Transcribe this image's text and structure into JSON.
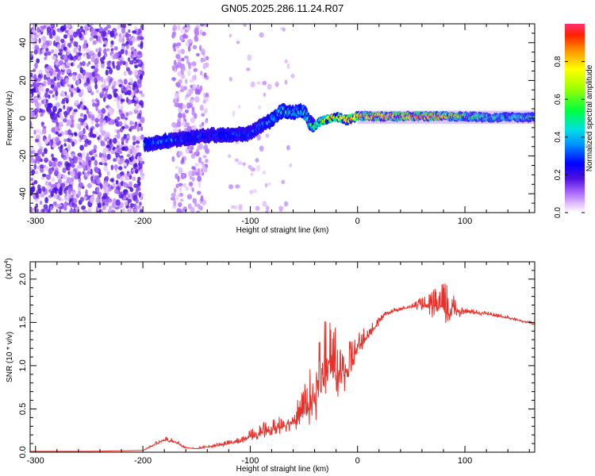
{
  "page_title": "GN05.2025.286.11.24.R07",
  "chart_data": [
    {
      "type": "heatmap",
      "title": "GN05.2025.286.11.24.R07",
      "xlabel": "Height of straight line (km)",
      "ylabel": "Frequency (Hz)",
      "xlim": [
        -305,
        165
      ],
      "ylim": [
        -50,
        50
      ],
      "x_ticks": [
        -300,
        -200,
        -100,
        0,
        100
      ],
      "x_tick_labels": [
        "-300",
        "-200",
        "-100",
        "0",
        "100"
      ],
      "y_ticks": [
        -40,
        -20,
        0,
        20,
        40
      ],
      "y_tick_labels": [
        "-40",
        "-20",
        "0",
        "20",
        "40"
      ],
      "colorbar": {
        "label": "Normalized spectral amplitude",
        "range": [
          0,
          1
        ],
        "ticks": [
          0.0,
          0.2,
          0.4,
          0.6,
          0.8
        ],
        "tick_labels": [
          "0.0",
          "0.2",
          "0.4",
          "0.6",
          "0.8"
        ]
      },
      "ridge": {
        "x": [
          -195,
          -180,
          -160,
          -140,
          -120,
          -100,
          -90,
          -80,
          -70,
          -60,
          -50,
          -45,
          -40,
          -35,
          -30,
          -20,
          -10,
          0,
          20,
          40,
          60,
          80,
          100,
          120,
          140,
          165
        ],
        "frequency": [
          -14,
          -12,
          -11,
          -9,
          -9,
          -8,
          -4,
          -1,
          4,
          3,
          4,
          -2,
          -4,
          -2,
          -1,
          1,
          -1,
          1,
          1,
          1,
          1,
          1,
          1,
          0.5,
          0.5,
          0.5
        ],
        "amplitude": [
          0.35,
          0.4,
          0.35,
          0.3,
          0.35,
          0.35,
          0.4,
          0.45,
          0.55,
          0.5,
          0.55,
          0.6,
          0.7,
          0.8,
          0.85,
          0.9,
          0.95,
          0.95,
          0.98,
          0.98,
          0.97,
          0.95,
          0.7,
          0.6,
          0.55,
          0.5
        ]
      }
    },
    {
      "type": "line",
      "xlabel": "Height of straight line (km)",
      "ylabel": "SNR (10 * v/v)",
      "y_scale_label": "(x10",
      "y_scale_exponent": "4",
      "y_scale_suffix": ")",
      "xlim": [
        -305,
        165
      ],
      "ylim": [
        0,
        2.2
      ],
      "x_ticks": [
        -300,
        -200,
        -100,
        0,
        100
      ],
      "x_tick_labels": [
        "-300",
        "-200",
        "-100",
        "0",
        "100"
      ],
      "y_ticks": [
        0.0,
        0.5,
        1.0,
        1.5,
        2.0
      ],
      "y_tick_labels": [
        "0.0",
        "0.5",
        "1.0",
        "1.5",
        "2.0"
      ],
      "series": [
        {
          "name": "SNR",
          "color": "#e8302a",
          "x": [
            -305,
            -250,
            -200,
            -190,
            -180,
            -170,
            -160,
            -150,
            -130,
            -110,
            -100,
            -90,
            -80,
            -70,
            -60,
            -50,
            -40,
            -35,
            -30,
            -25,
            -20,
            -15,
            -10,
            -5,
            0,
            10,
            20,
            25,
            30,
            40,
            50,
            60,
            70,
            80,
            85,
            90,
            100,
            120,
            140,
            165
          ],
          "values": [
            0.01,
            0.01,
            0.02,
            0.08,
            0.14,
            0.12,
            0.05,
            0.04,
            0.08,
            0.12,
            0.18,
            0.22,
            0.25,
            0.3,
            0.35,
            0.45,
            0.6,
            0.8,
            0.95,
            1.0,
            0.9,
            0.85,
            0.9,
            1.0,
            1.2,
            1.35,
            1.5,
            1.6,
            1.62,
            1.65,
            1.68,
            1.7,
            1.66,
            1.65,
            1.6,
            1.64,
            1.62,
            1.6,
            1.55,
            1.48
          ],
          "noise_amplitude": [
            0,
            0,
            0,
            0.02,
            0.05,
            0.04,
            0.01,
            0.01,
            0.03,
            0.05,
            0.08,
            0.12,
            0.12,
            0.15,
            0.18,
            0.3,
            0.5,
            0.7,
            0.7,
            0.6,
            0.5,
            0.4,
            0.35,
            0.3,
            0.2,
            0.1,
            0.06,
            0.05,
            0.04,
            0.03,
            0.03,
            0.1,
            0.2,
            0.3,
            0.4,
            0.2,
            0.04,
            0.03,
            0.02,
            0.02
          ]
        }
      ]
    }
  ]
}
